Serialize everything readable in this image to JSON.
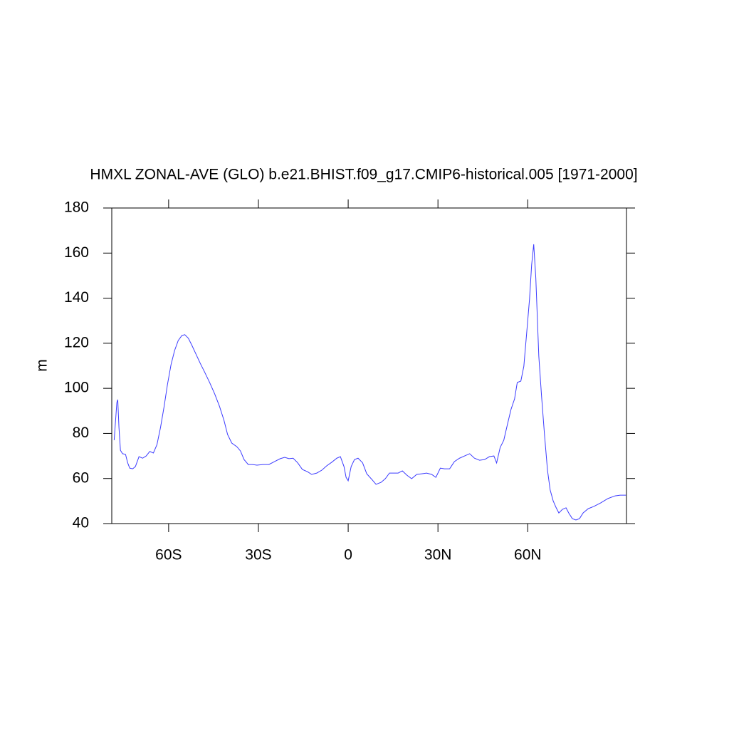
{
  "chart_data": {
    "type": "line",
    "title": "HMXL ZONAL-AVE (GLO) b.e21.BHIST.f09_g17.CMIP6-historical.005 [1971-2000]",
    "y_label": "m",
    "x": [
      -78.2,
      -77.3,
      -77,
      -76.6,
      -76.1,
      -75.4,
      -74.4,
      -73.7,
      -73,
      -72,
      -71.1,
      -69.9,
      -68.7,
      -67.5,
      -66.3,
      -65.1,
      -63.9,
      -62.7,
      -61.5,
      -60.4,
      -59.2,
      -58,
      -56.8,
      -55.6,
      -54.6,
      -53.4,
      -52.2,
      -50.8,
      -49.4,
      -48,
      -46.3,
      -44.6,
      -43,
      -41.5,
      -40.3,
      -38.9,
      -37.2,
      -36,
      -34.8,
      -33.4,
      -32,
      -30.5,
      -28.4,
      -26.5,
      -24.6,
      -22.7,
      -21.2,
      -19.8,
      -18.4,
      -16.9,
      -15.3,
      -13.6,
      -12.2,
      -10.5,
      -8.8,
      -7.2,
      -5.5,
      -3.8,
      -2.6,
      -1.4,
      -0.7,
      0,
      1,
      2.1,
      3.3,
      4.8,
      6.2,
      7.9,
      9.3,
      11,
      12.4,
      13.8,
      15.3,
      16.7,
      18.1,
      19.6,
      21.2,
      22.9,
      24.6,
      26.2,
      27.9,
      29.3,
      30.8,
      32.2,
      33.9,
      35.5,
      37.2,
      38.9,
      40.6,
      42.2,
      43.9,
      45.6,
      47.2,
      48.7,
      49.6,
      50.8,
      52,
      53.2,
      54.4,
      55.6,
      56.5,
      57.7,
      58.7,
      59.6,
      60.6,
      61.3,
      62,
      62.7,
      63.7,
      64.6,
      65.6,
      66.6,
      67.5,
      68.5,
      69.4,
      70.4,
      71.6,
      72.8,
      73.7,
      74.9,
      76.1,
      77.3,
      78.5,
      80.2,
      82.1,
      84.4,
      86.8,
      89.2,
      90.9,
      92.8
    ],
    "series": [
      {
        "color": "#3c3cff",
        "values": [
          77,
          93.7,
          95,
          82.7,
          72.5,
          71,
          70.7,
          67,
          64.6,
          64.3,
          65.3,
          69.7,
          69,
          70,
          72,
          71.3,
          75,
          82.7,
          92,
          101.6,
          110.5,
          116.8,
          121.2,
          123.4,
          123.8,
          122.2,
          119,
          115,
          111,
          107.3,
          102.6,
          97.5,
          92,
          85.8,
          79.5,
          75.7,
          74.1,
          72.2,
          68.4,
          66.2,
          66.2,
          65.9,
          66.2,
          66.2,
          67.5,
          68.8,
          69.4,
          68.8,
          69,
          67,
          64,
          63,
          61.8,
          62.4,
          63.7,
          65.6,
          67.2,
          69,
          69.7,
          65.3,
          60.5,
          59,
          65.3,
          68.4,
          69,
          67,
          62.1,
          59.6,
          57.4,
          58.3,
          59.9,
          62.4,
          62.4,
          62.4,
          63.4,
          61.5,
          59.9,
          61.8,
          62.1,
          62.4,
          61.8,
          60.5,
          64.6,
          64.3,
          64.3,
          67.5,
          69,
          70,
          71,
          69,
          68.1,
          68.4,
          69.7,
          70,
          66.9,
          73.8,
          77,
          83.9,
          90.6,
          95.3,
          102.6,
          103.2,
          109.8,
          123.8,
          139.6,
          154.7,
          163.9,
          149,
          114.3,
          96.9,
          79.5,
          63.7,
          54.9,
          50.1,
          47.3,
          44.7,
          46.3,
          47,
          44.7,
          42.2,
          41.6,
          42.2,
          44.7,
          46.6,
          47.6,
          49.2,
          51.1,
          52.3,
          52.6,
          52.6
        ]
      }
    ],
    "xlim": [
      -79,
      93
    ],
    "xticks": [
      {
        "value": -60,
        "label": "60S"
      },
      {
        "value": -30,
        "label": "30S"
      },
      0,
      {
        "value": 30,
        "label": "30N"
      },
      {
        "value": 60,
        "label": "60N"
      }
    ],
    "ylim": [
      40,
      180
    ],
    "yticks": [
      40,
      60,
      80,
      100,
      120,
      140,
      160,
      180
    ]
  }
}
